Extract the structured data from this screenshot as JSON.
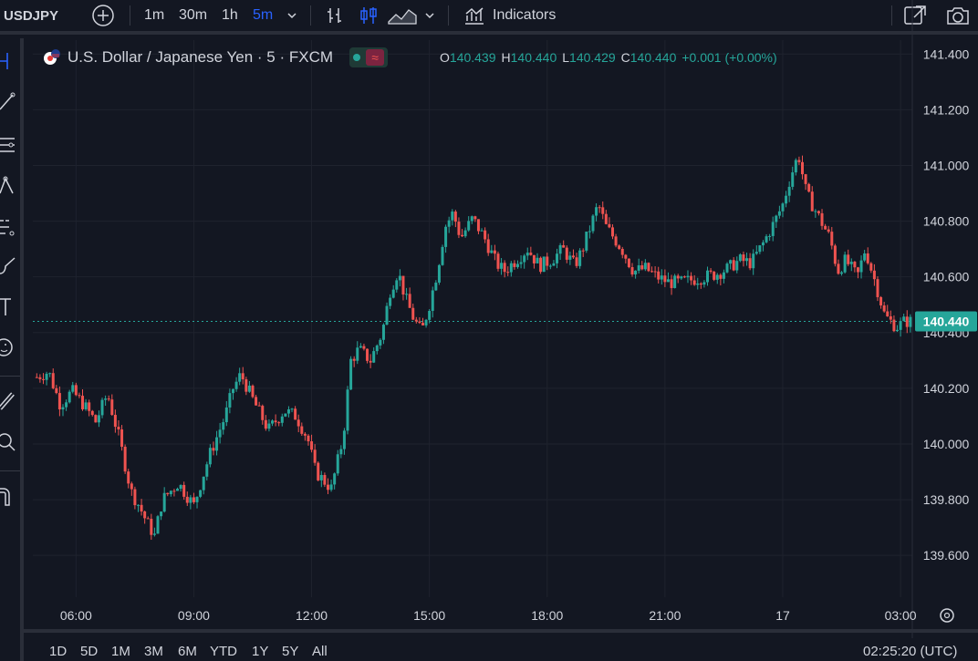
{
  "toolbar": {
    "symbol": "USDJPY",
    "intervals": [
      "1m",
      "30m",
      "1h",
      "5m"
    ],
    "active_interval": "5m",
    "indicators_label": "Indicators"
  },
  "legend": {
    "title": "U.S. Dollar / Japanese Yen · 5 · FXCM",
    "o_label": "O",
    "o_value": "140.439",
    "h_label": "H",
    "h_value": "140.440",
    "l_label": "L",
    "l_value": "140.429",
    "c_label": "C",
    "c_value": "140.440",
    "change": "+0.001 (+0.00%)"
  },
  "price_label": "140.440",
  "range_buttons": [
    "1D",
    "5D",
    "1M",
    "3M",
    "6M",
    "YTD",
    "1Y",
    "5Y",
    "All"
  ],
  "clock": "02:25:20 (UTC)",
  "colors": {
    "up": "#26a69a",
    "down": "#ef5350",
    "background": "#131722",
    "grid": "#1e222d"
  },
  "chart_data": {
    "type": "candlestick",
    "title": "U.S. Dollar / Japanese Yen · 5 · FXCM",
    "ylim": [
      139.45,
      141.45
    ],
    "y_ticks": [
      "141.400",
      "141.200",
      "141.000",
      "140.800",
      "140.600",
      "140.400",
      "140.200",
      "140.000",
      "139.800",
      "139.600"
    ],
    "x_ticks": [
      "06:00",
      "09:00",
      "12:00",
      "15:00",
      "18:00",
      "21:00",
      "17",
      "03:00"
    ],
    "x_range_hours": [
      4.9,
      27.3
    ],
    "last_price": 140.44,
    "grid": true,
    "path": [
      [
        5.0,
        140.24
      ],
      [
        5.3,
        140.26
      ],
      [
        5.6,
        140.14
      ],
      [
        5.9,
        140.19
      ],
      [
        6.2,
        140.14
      ],
      [
        6.5,
        140.08
      ],
      [
        6.8,
        140.18
      ],
      [
        7.1,
        140.02
      ],
      [
        7.4,
        139.83
      ],
      [
        7.6,
        139.78
      ],
      [
        7.8,
        139.72
      ],
      [
        8.0,
        139.67
      ],
      [
        8.2,
        139.8
      ],
      [
        8.6,
        139.86
      ],
      [
        9.0,
        139.78
      ],
      [
        9.4,
        139.96
      ],
      [
        9.8,
        140.1
      ],
      [
        10.0,
        140.2
      ],
      [
        10.2,
        140.25
      ],
      [
        10.5,
        140.16
      ],
      [
        10.9,
        140.05
      ],
      [
        11.3,
        140.12
      ],
      [
        11.6,
        140.1
      ],
      [
        11.9,
        140.02
      ],
      [
        12.1,
        139.9
      ],
      [
        12.5,
        139.84
      ],
      [
        12.8,
        140.02
      ],
      [
        13.0,
        140.3
      ],
      [
        13.2,
        140.34
      ],
      [
        13.5,
        140.3
      ],
      [
        13.8,
        140.4
      ],
      [
        14.0,
        140.55
      ],
      [
        14.2,
        140.62
      ],
      [
        14.4,
        140.52
      ],
      [
        14.6,
        140.45
      ],
      [
        14.8,
        140.4
      ],
      [
        15.0,
        140.5
      ],
      [
        15.2,
        140.62
      ],
      [
        15.4,
        140.78
      ],
      [
        15.6,
        140.83
      ],
      [
        15.8,
        140.74
      ],
      [
        16.1,
        140.81
      ],
      [
        16.4,
        140.74
      ],
      [
        16.7,
        140.65
      ],
      [
        16.9,
        140.62
      ],
      [
        17.2,
        140.66
      ],
      [
        17.5,
        140.7
      ],
      [
        17.8,
        140.64
      ],
      [
        18.1,
        140.66
      ],
      [
        18.4,
        140.7
      ],
      [
        18.7,
        140.64
      ],
      [
        18.9,
        140.7
      ],
      [
        19.1,
        140.78
      ],
      [
        19.3,
        140.86
      ],
      [
        19.5,
        140.78
      ],
      [
        19.7,
        140.74
      ],
      [
        19.9,
        140.7
      ],
      [
        20.2,
        140.62
      ],
      [
        20.5,
        140.63
      ],
      [
        20.8,
        140.6
      ],
      [
        21.1,
        140.58
      ],
      [
        21.4,
        140.58
      ],
      [
        21.7,
        140.59
      ],
      [
        22.0,
        140.6
      ],
      [
        22.3,
        140.61
      ],
      [
        22.6,
        140.63
      ],
      [
        22.9,
        140.66
      ],
      [
        23.2,
        140.65
      ],
      [
        23.5,
        140.72
      ],
      [
        23.8,
        140.8
      ],
      [
        24.0,
        140.86
      ],
      [
        24.2,
        140.96
      ],
      [
        24.4,
        141.04
      ],
      [
        24.6,
        140.9
      ],
      [
        24.9,
        140.82
      ],
      [
        25.2,
        140.74
      ],
      [
        25.4,
        140.62
      ],
      [
        25.6,
        140.66
      ],
      [
        25.9,
        140.6
      ],
      [
        26.1,
        140.7
      ],
      [
        26.4,
        140.56
      ],
      [
        26.6,
        140.46
      ],
      [
        26.9,
        140.42
      ],
      [
        27.1,
        140.44
      ],
      [
        27.3,
        140.44
      ]
    ]
  }
}
